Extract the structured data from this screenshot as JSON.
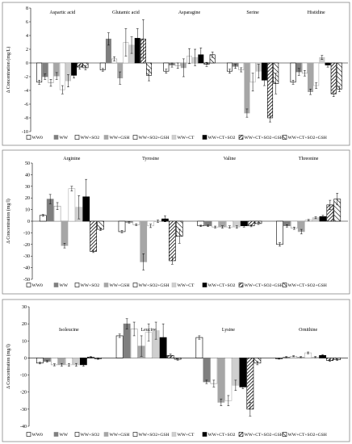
{
  "chart_data": [
    {
      "type": "bar",
      "ylabel": "Δ Concentration (mg/L)",
      "ylim": [
        -10,
        8
      ],
      "yticks": [
        8,
        6,
        4,
        2,
        0,
        -2,
        -4,
        -6,
        -8,
        -10
      ],
      "groups": [
        "Aspartic acid",
        "Glutamic acid",
        "Asparagine",
        "Serine",
        "Histidine"
      ],
      "series": [
        {
          "name": "WW0",
          "values": [
            -2.8,
            -1.0,
            -1.2,
            -1.2,
            -2.8
          ],
          "errors": [
            0.3,
            0.2,
            0.3,
            0.3,
            0.3
          ]
        },
        {
          "name": "WW",
          "values": [
            -2.0,
            3.5,
            -0.3,
            -0.5,
            -1.3
          ],
          "errors": [
            0.4,
            0.9,
            0.3,
            0.3,
            0.5
          ]
        },
        {
          "name": "WW+SO2",
          "values": [
            -2.9,
            0.6,
            -0.4,
            -1.0,
            -1.5
          ],
          "errors": [
            0.5,
            0.3,
            0.4,
            0.3,
            0.4
          ]
        },
        {
          "name": "WW+GSH",
          "values": [
            -1.9,
            -2.2,
            -0.7,
            -7.3,
            -4.2
          ],
          "errors": [
            0.5,
            0.9,
            1.3,
            0.6,
            0.4
          ]
        },
        {
          "name": "WW+SO2+GSH",
          "values": [
            -3.9,
            3.0,
            1.0,
            -2.8,
            -3.3
          ],
          "errors": [
            0.6,
            2.0,
            1.1,
            1.3,
            0.4
          ]
        },
        {
          "name": "WW+CT",
          "values": [
            -2.6,
            2.6,
            0.8,
            -1.2,
            0.8
          ],
          "errors": [
            0.9,
            1.2,
            1.2,
            1.0,
            0.3
          ]
        },
        {
          "name": "WW+CT+SO2",
          "values": [
            -1.8,
            3.6,
            1.2,
            -2.5,
            -0.3
          ],
          "errors": [
            0.4,
            1.4,
            1.0,
            0.8,
            0.3
          ]
        },
        {
          "name": "WW+CT+SO2+GSH_1",
          "values": [
            -0.6,
            3.5,
            -0.2,
            -8.0,
            -4.5
          ],
          "errors": [
            0.3,
            2.8,
            0.3,
            0.6,
            0.4
          ]
        },
        {
          "name": "WW+CT+SO2+GSH",
          "values": [
            -0.7,
            -1.8,
            1.2,
            -3.0,
            -3.8
          ],
          "errors": [
            0.3,
            0.8,
            0.4,
            1.5,
            0.4
          ]
        }
      ]
    },
    {
      "type": "bar",
      "ylabel": "Δ Concentration (mg/l)",
      "ylim": [
        -50,
        50
      ],
      "yticks": [
        50,
        40,
        30,
        20,
        10,
        0,
        -10,
        -20,
        -30,
        -40,
        -50
      ],
      "groups": [
        "Arginine",
        "Tyrosine",
        "Valine",
        "Threonine"
      ],
      "series": [
        {
          "name": "WW0",
          "values": [
            5,
            -9,
            -4,
            -20
          ],
          "errors": [
            0.8,
            1.0,
            0.6,
            1.5
          ]
        },
        {
          "name": "WW",
          "values": [
            19,
            -1,
            -4,
            -4
          ],
          "errors": [
            4.0,
            0.6,
            0.6,
            1.0
          ]
        },
        {
          "name": "WW+SO2",
          "values": [
            13,
            -3,
            -5,
            -6
          ],
          "errors": [
            3.0,
            0.8,
            0.8,
            1.0
          ]
        },
        {
          "name": "WW+GSH",
          "values": [
            -21,
            -35,
            -5,
            -9
          ],
          "errors": [
            2.0,
            7.0,
            1.0,
            2.0
          ]
        },
        {
          "name": "WW+SO2+GSH",
          "values": [
            28,
            -4,
            -5,
            1
          ],
          "errors": [
            2.0,
            1.5,
            1.0,
            0.5
          ]
        },
        {
          "name": "WW+CT",
          "values": [
            12,
            0,
            -5,
            3
          ],
          "errors": [
            10.0,
            1.0,
            1.0,
            0.8
          ]
        },
        {
          "name": "WW+CT+SO2",
          "values": [
            21,
            2,
            -4,
            4
          ],
          "errors": [
            15.0,
            2.5,
            1.0,
            1.0
          ]
        },
        {
          "name": "WW+CT+SO2+GSH_1",
          "values": [
            -26,
            -34,
            -4,
            14
          ],
          "errors": [
            1.0,
            3.0,
            0.8,
            4.0
          ]
        },
        {
          "name": "WW+CT+SO2+GSH",
          "values": [
            -7,
            -13,
            -2,
            19
          ],
          "errors": [
            1.0,
            6.0,
            0.8,
            5.0
          ]
        }
      ]
    },
    {
      "type": "bar",
      "ylabel": "Δ Concentration (mg/l)",
      "ylim": [
        -40,
        30
      ],
      "yticks": [
        30,
        20,
        10,
        0,
        -10,
        -20,
        -30,
        -40
      ],
      "groups": [
        "Isoleucine",
        "Leucine",
        "Lysine",
        "Ornithine"
      ],
      "series": [
        {
          "name": "WW0",
          "values": [
            -3,
            13,
            12,
            -0.5
          ],
          "errors": [
            0.5,
            1.0,
            1.0,
            0.2
          ]
        },
        {
          "name": "WW",
          "values": [
            -2,
            20,
            -14,
            0.5
          ],
          "errors": [
            0.4,
            3.0,
            1.0,
            0.3
          ]
        },
        {
          "name": "WW+SO2",
          "values": [
            -4,
            17,
            -15,
            1.0
          ],
          "errors": [
            0.6,
            4.0,
            2.0,
            0.3
          ]
        },
        {
          "name": "WW+GSH",
          "values": [
            -4,
            7,
            -26,
            0.5
          ],
          "errors": [
            0.8,
            6.0,
            2.0,
            0.3
          ]
        },
        {
          "name": "WW+SO2+GSH",
          "values": [
            -4,
            15,
            -25,
            3.0
          ],
          "errors": [
            0.8,
            5.0,
            3.0,
            0.5
          ]
        },
        {
          "name": "WW+CT",
          "values": [
            -4,
            16,
            -16,
            0.5
          ],
          "errors": [
            0.8,
            5.0,
            3.0,
            0.3
          ]
        },
        {
          "name": "WW+CT+SO2",
          "values": [
            -4,
            12,
            -17,
            1.5
          ],
          "errors": [
            0.8,
            8.0,
            1.0,
            0.4
          ]
        },
        {
          "name": "WW+CT+SO2+GSH_1",
          "values": [
            0.5,
            1.5,
            -30,
            -1.5
          ],
          "errors": [
            0.3,
            0.8,
            4.0,
            0.5
          ]
        },
        {
          "name": "WW+CT+SO2+GSH",
          "values": [
            -0.5,
            -0.8,
            -3,
            -1.0
          ],
          "errors": [
            0.3,
            0.5,
            1.0,
            0.4
          ]
        }
      ]
    }
  ],
  "legend": {
    "labels": [
      "WW0",
      "WW",
      "WW+SO2",
      "WW+GSH",
      "WW+SO2+GSH",
      "WW+CT",
      "WW+CT+SO2",
      "WW+CT+SO2+GSH",
      "WW+CT+SO2+GSH"
    ]
  },
  "styles": [
    {
      "fill": "#ffffff",
      "stroke": "#000000"
    },
    {
      "fill": "#7f7f7f",
      "stroke": "#7f7f7f"
    },
    {
      "fill": "#ffffff",
      "stroke": "#9a9a9a"
    },
    {
      "fill": "#a6a6a6",
      "stroke": "#a6a6a6"
    },
    {
      "fill": "#ffffff",
      "stroke": "#b0b0b0"
    },
    {
      "fill": "#cfcfcf",
      "stroke": "#bdbdbd"
    },
    {
      "fill": "#000000",
      "stroke": "#000000"
    },
    {
      "fill": "url(#hatchA)",
      "stroke": "#000000"
    },
    {
      "fill": "url(#hatchB)",
      "stroke": "#000000"
    }
  ]
}
